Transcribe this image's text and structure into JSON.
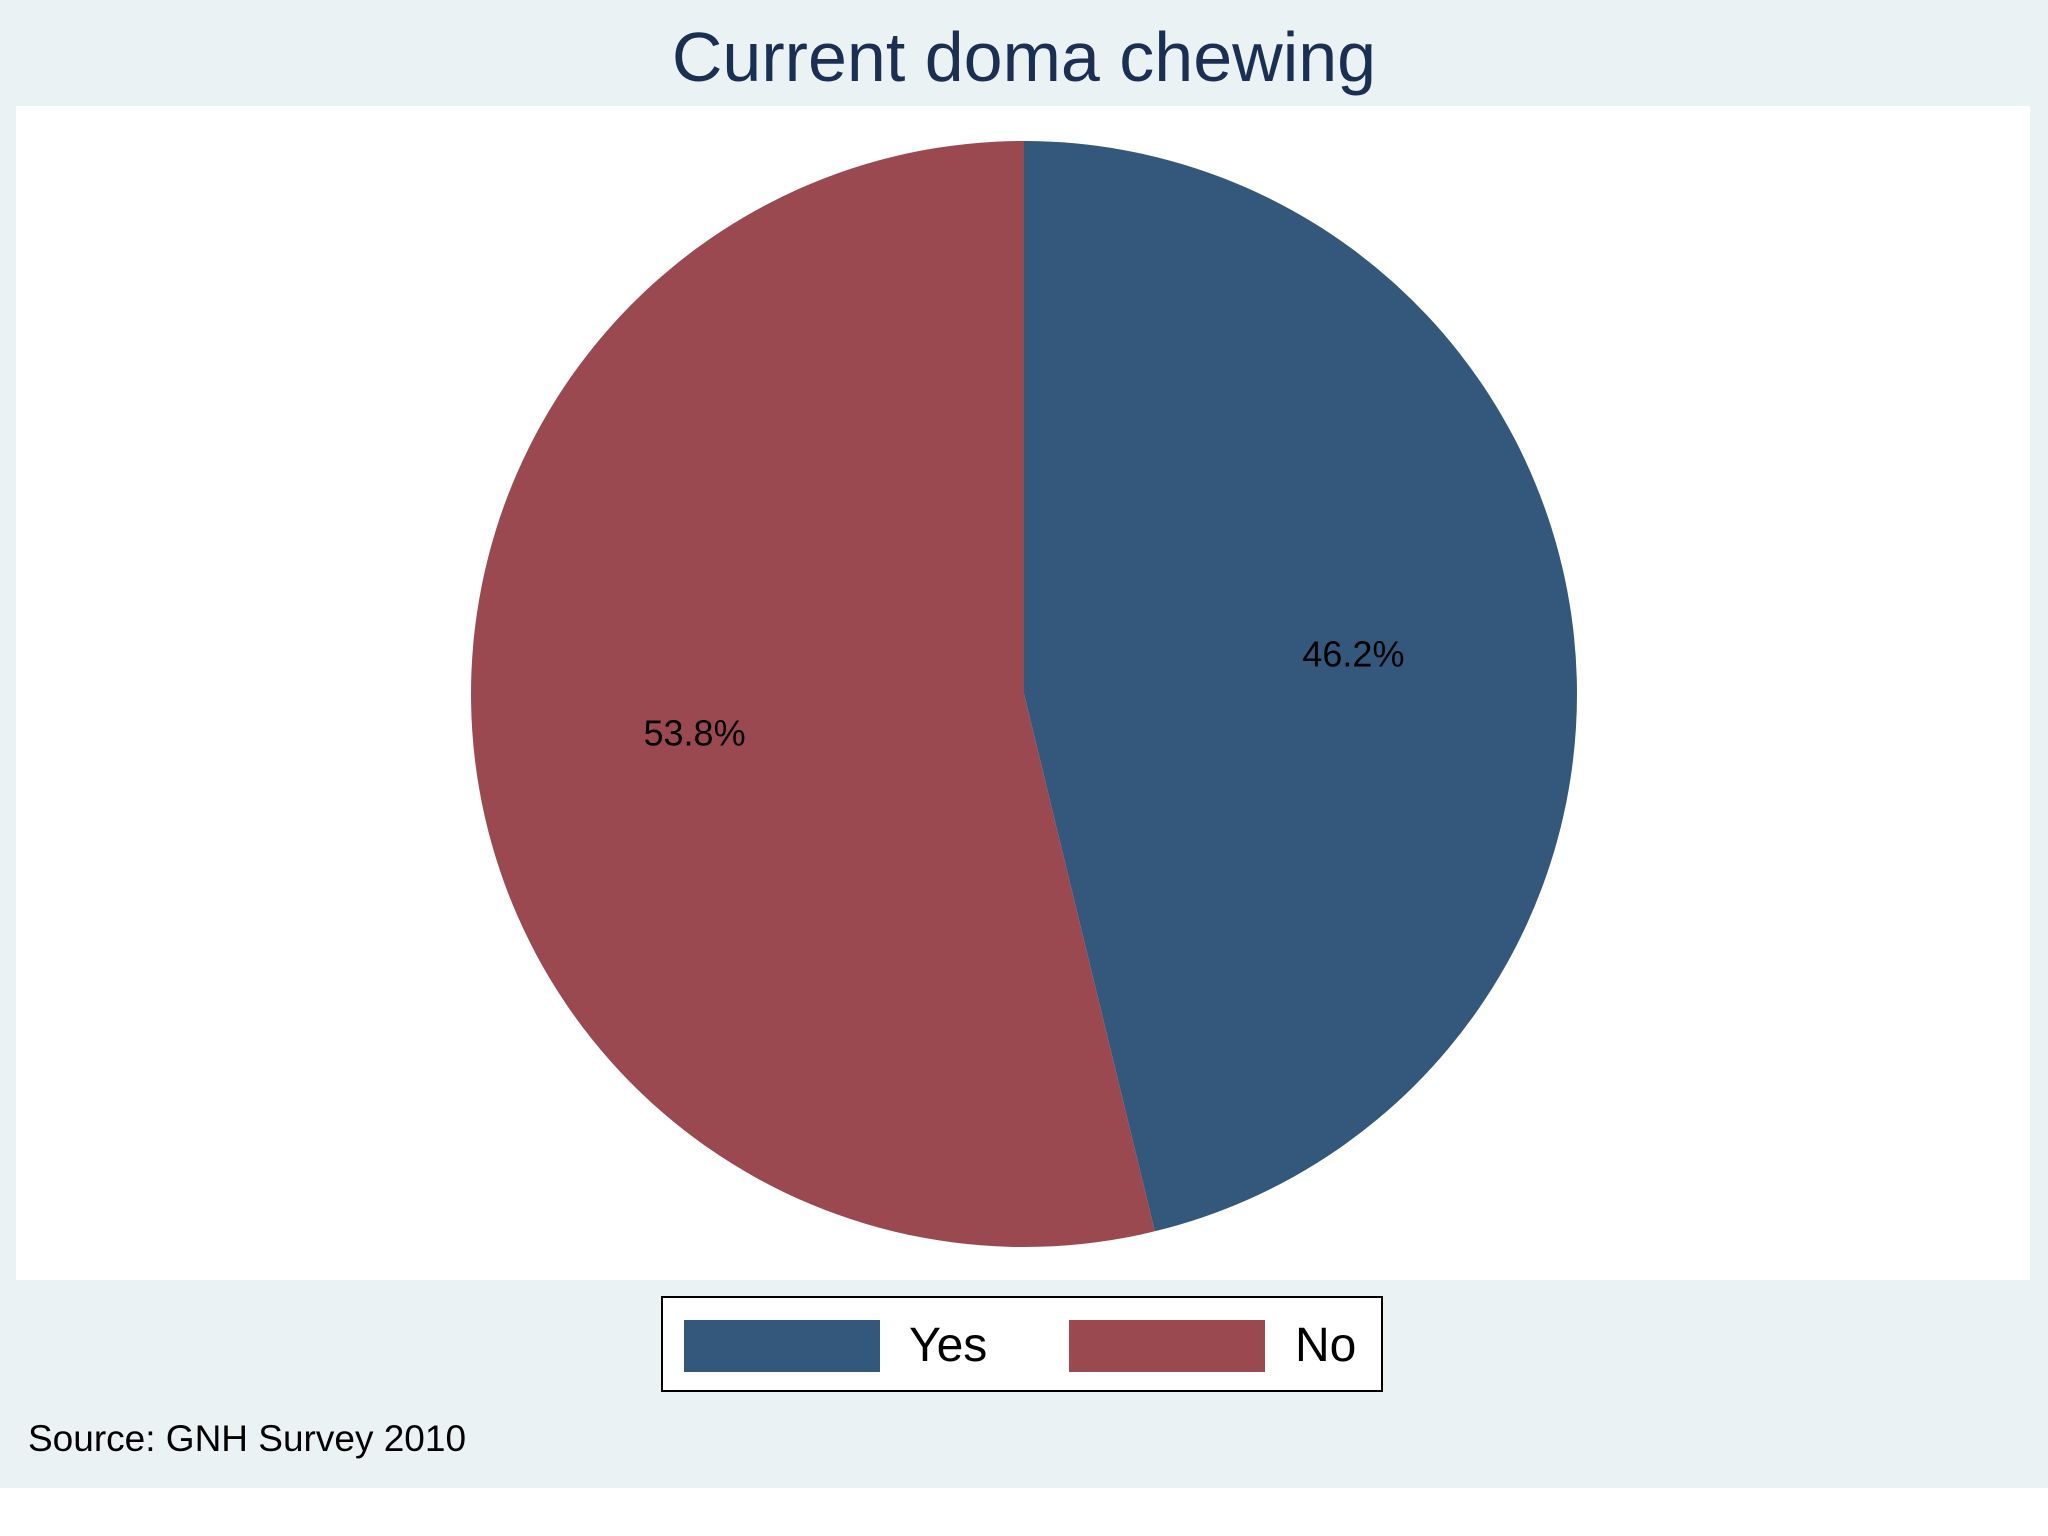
{
  "chart_data": {
    "type": "pie",
    "title": "Current doma chewing",
    "slices": [
      {
        "label": "Yes",
        "value": 46.2,
        "value_label": "46.2%",
        "color": "#33587c"
      },
      {
        "label": "No",
        "value": 53.8,
        "value_label": "53.8%",
        "color": "#9b4951"
      }
    ],
    "start_angle": "12 o'clock",
    "direction": "clockwise",
    "legend": {
      "position": "bottom",
      "entries": [
        "Yes",
        "No"
      ]
    },
    "note": "Source: GNH Survey 2010"
  },
  "colors": {
    "background": "#eaf2f3",
    "plot_background": "#ffffff",
    "title": "#1a2f52"
  }
}
